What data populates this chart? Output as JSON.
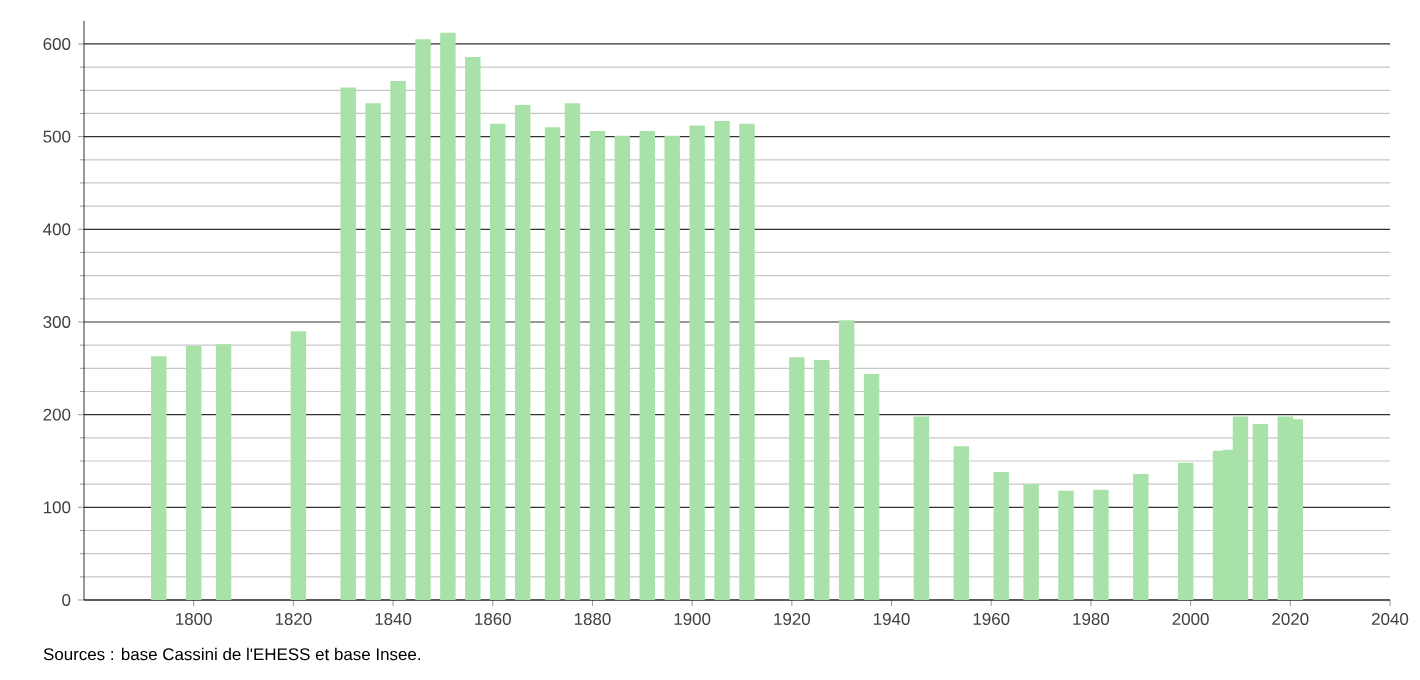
{
  "chart_data": {
    "type": "bar",
    "x": [
      1793,
      1800,
      1806,
      1821,
      1831,
      1836,
      1841,
      1846,
      1851,
      1856,
      1861,
      1866,
      1872,
      1876,
      1881,
      1886,
      1891,
      1896,
      1901,
      1906,
      1911,
      1921,
      1926,
      1931,
      1936,
      1946,
      1954,
      1962,
      1968,
      1975,
      1982,
      1990,
      1999,
      2006,
      2008,
      2010,
      2014,
      2019,
      2021
    ],
    "values": [
      263,
      274,
      276,
      290,
      553,
      536,
      560,
      605,
      612,
      586,
      514,
      534,
      510,
      536,
      506,
      501,
      506,
      501,
      512,
      517,
      514,
      262,
      259,
      302,
      244,
      198,
      166,
      138,
      125,
      118,
      119,
      136,
      148,
      161,
      162,
      198,
      190,
      198,
      195
    ],
    "color": "#a8e2a8",
    "xlim": [
      1778,
      2040
    ],
    "xticks": [
      1800,
      1820,
      1840,
      1860,
      1880,
      1900,
      1920,
      1940,
      1960,
      1980,
      2000,
      2020,
      2040
    ],
    "ylim": [
      0,
      625
    ],
    "yticks": [
      0,
      100,
      200,
      300,
      400,
      500,
      600
    ],
    "grid": "y",
    "annotations": [
      "Sources : base Cassini de l'EHESS et base Insee."
    ]
  }
}
